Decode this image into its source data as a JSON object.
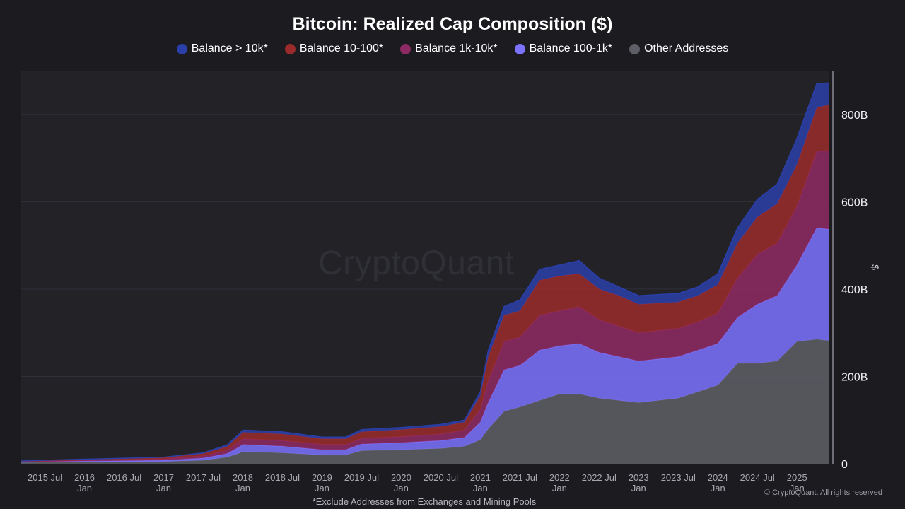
{
  "title": "Bitcoin: Realized Cap Composition ($)",
  "legend": [
    {
      "label": "Balance > 10k*",
      "color": "#2a3fa8"
    },
    {
      "label": "Balance 10-100*",
      "color": "#9b2b2b"
    },
    {
      "label": "Balance 1k-10k*",
      "color": "#8e2a63"
    },
    {
      "label": "Balance 100-1k*",
      "color": "#7b72ff"
    },
    {
      "label": "Other Addresses",
      "color": "#5e5e66"
    }
  ],
  "watermark": "CryptoQuant",
  "footnote": "*Exclude Addresses from Exchanges and Mining Pools",
  "copyright": "© CryptoQuant. All rights reserved",
  "y_unit": "$",
  "chart_data": {
    "type": "area",
    "stacked": true,
    "title": "Bitcoin: Realized Cap Composition ($)",
    "ylabel": "$",
    "ylim": [
      0,
      900
    ],
    "yticks": [
      0,
      200,
      400,
      600,
      800
    ],
    "ytick_labels": [
      "0",
      "200B",
      "400B",
      "600B",
      "800B"
    ],
    "xticks": [
      {
        "t": 2015.5,
        "line1": "2015 Jul",
        "line2": ""
      },
      {
        "t": 2016.0,
        "line1": "2016",
        "line2": "Jan"
      },
      {
        "t": 2016.5,
        "line1": "2016 Jul",
        "line2": ""
      },
      {
        "t": 2017.0,
        "line1": "2017",
        "line2": "Jan"
      },
      {
        "t": 2017.5,
        "line1": "2017 Jul",
        "line2": ""
      },
      {
        "t": 2018.0,
        "line1": "2018",
        "line2": "Jan"
      },
      {
        "t": 2018.5,
        "line1": "2018 Jul",
        "line2": ""
      },
      {
        "t": 2019.0,
        "line1": "2019",
        "line2": "Jan"
      },
      {
        "t": 2019.5,
        "line1": "2019 Jul",
        "line2": ""
      },
      {
        "t": 2020.0,
        "line1": "2020",
        "line2": "Jan"
      },
      {
        "t": 2020.5,
        "line1": "2020 Jul",
        "line2": ""
      },
      {
        "t": 2021.0,
        "line1": "2021",
        "line2": "Jan"
      },
      {
        "t": 2021.5,
        "line1": "2021 Jul",
        "line2": ""
      },
      {
        "t": 2022.0,
        "line1": "2022",
        "line2": "Jan"
      },
      {
        "t": 2022.5,
        "line1": "2022 Jul",
        "line2": ""
      },
      {
        "t": 2023.0,
        "line1": "2023",
        "line2": "Jan"
      },
      {
        "t": 2023.5,
        "line1": "2023 Jul",
        "line2": ""
      },
      {
        "t": 2024.0,
        "line1": "2024",
        "line2": "Jan"
      },
      {
        "t": 2024.5,
        "line1": "2024 Jul",
        "line2": ""
      },
      {
        "t": 2025.0,
        "line1": "2025",
        "line2": "Jan"
      }
    ],
    "x": [
      2015.2,
      2016.0,
      2017.0,
      2017.5,
      2017.8,
      2017.95,
      2018.0,
      2018.5,
      2019.0,
      2019.3,
      2019.5,
      2020.0,
      2020.5,
      2020.8,
      2021.0,
      2021.1,
      2021.3,
      2021.5,
      2021.75,
      2022.0,
      2022.25,
      2022.5,
      2022.75,
      2023.0,
      2023.5,
      2023.75,
      2024.0,
      2024.25,
      2024.5,
      2024.75,
      2025.0,
      2025.25,
      2025.4
    ],
    "series": [
      {
        "name": "Other Addresses",
        "color": "#5e5e66",
        "values": [
          3,
          4,
          5,
          8,
          15,
          24,
          28,
          25,
          20,
          20,
          30,
          32,
          35,
          40,
          55,
          80,
          120,
          130,
          145,
          160,
          160,
          150,
          145,
          140,
          150,
          165,
          180,
          230,
          230,
          235,
          280,
          285,
          282
        ]
      },
      {
        "name": "Balance 100-1k*",
        "color": "#7b72ff",
        "values": [
          1,
          2,
          3,
          5,
          8,
          14,
          16,
          15,
          12,
          12,
          15,
          16,
          18,
          20,
          40,
          60,
          95,
          95,
          115,
          110,
          115,
          105,
          100,
          95,
          95,
          95,
          95,
          105,
          135,
          150,
          175,
          255,
          255
        ]
      },
      {
        "name": "Balance 1k-10k*",
        "color": "#8e2a63",
        "values": [
          1,
          2,
          3,
          5,
          8,
          12,
          13,
          13,
          12,
          12,
          13,
          14,
          15,
          17,
          30,
          50,
          65,
          65,
          80,
          80,
          85,
          75,
          70,
          65,
          65,
          65,
          70,
          90,
          115,
          120,
          135,
          175,
          180
        ]
      },
      {
        "name": "Balance 10-100*",
        "color": "#9b2b2b",
        "values": [
          1,
          2,
          3,
          5,
          8,
          13,
          15,
          15,
          13,
          13,
          15,
          16,
          17,
          18,
          30,
          55,
          60,
          60,
          80,
          80,
          75,
          70,
          70,
          65,
          60,
          60,
          65,
          80,
          85,
          90,
          95,
          100,
          105
        ]
      },
      {
        "name": "Balance > 10k*",
        "color": "#2a3fa8",
        "values": [
          0.5,
          0.5,
          1,
          2,
          4,
          5,
          5,
          5,
          4,
          4,
          5,
          5,
          5,
          5,
          10,
          15,
          20,
          25,
          25,
          25,
          30,
          25,
          20,
          20,
          20,
          20,
          25,
          35,
          40,
          45,
          60,
          55,
          50
        ]
      }
    ]
  }
}
